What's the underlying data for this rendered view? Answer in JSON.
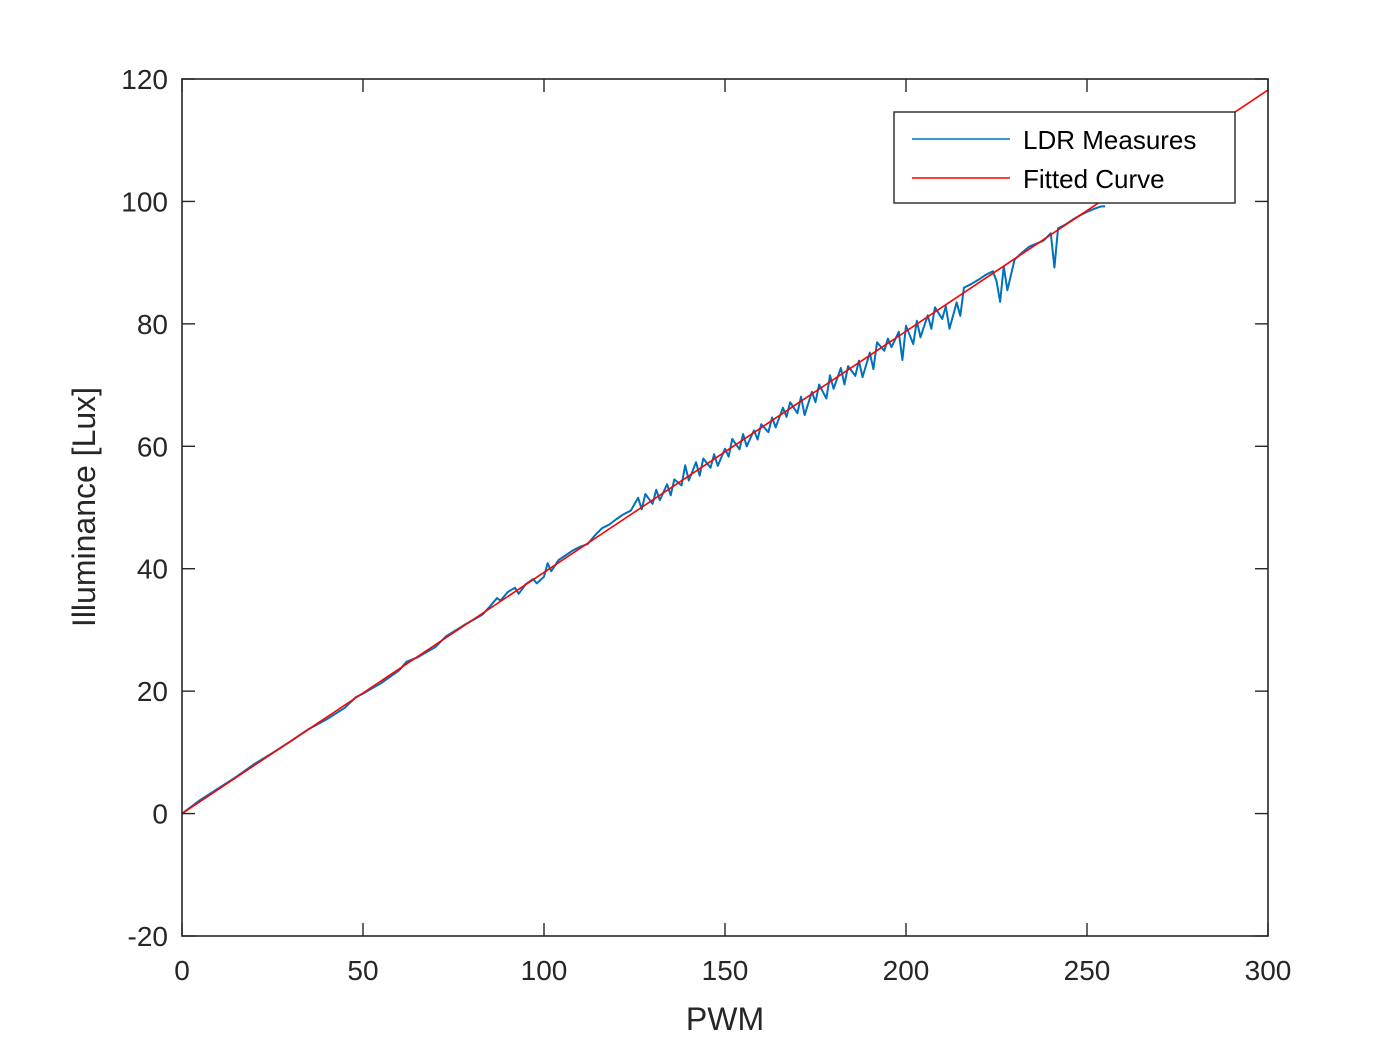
{
  "chart_data": {
    "type": "line",
    "xlabel": "PWM",
    "ylabel": "Illuminance [Lux]",
    "xlim": [
      0,
      300
    ],
    "ylim": [
      -20,
      120
    ],
    "xticks": [
      0,
      50,
      100,
      150,
      200,
      250,
      300
    ],
    "yticks": [
      -20,
      0,
      20,
      40,
      60,
      80,
      100,
      120
    ],
    "xtick_labels": [
      "0",
      "50",
      "100",
      "150",
      "200",
      "250",
      "300"
    ],
    "ytick_labels": [
      "-20",
      "0",
      "20",
      "40",
      "60",
      "80",
      "100",
      "120"
    ],
    "grid": false,
    "legend": {
      "position": "top-right"
    },
    "series": [
      {
        "name": "LDR Measures",
        "color": "#0072BD",
        "x": [
          0,
          5,
          10,
          15,
          20,
          25,
          30,
          35,
          40,
          45,
          48,
          50,
          55,
          60,
          62,
          65,
          70,
          73,
          75,
          78,
          80,
          83,
          85,
          87,
          88,
          90,
          92,
          93,
          95,
          97,
          98,
          100,
          101,
          102,
          104,
          106,
          108,
          110,
          112,
          114,
          116,
          118,
          120,
          122,
          124,
          126,
          127,
          128,
          130,
          131,
          132,
          134,
          135,
          136,
          138,
          139,
          140,
          142,
          143,
          144,
          146,
          147,
          148,
          150,
          151,
          152,
          154,
          155,
          156,
          158,
          159,
          160,
          162,
          163,
          164,
          166,
          167,
          168,
          170,
          171,
          172,
          174,
          175,
          176,
          178,
          179,
          180,
          182,
          183,
          184,
          186,
          187,
          188,
          190,
          191,
          192,
          194,
          195,
          196,
          198,
          199,
          200,
          202,
          203,
          204,
          206,
          207,
          208,
          210,
          211,
          212,
          214,
          215,
          216,
          218,
          220,
          222,
          224,
          225,
          226,
          227,
          228,
          230,
          232,
          234,
          236,
          238,
          240,
          241,
          242,
          244,
          246,
          248,
          250,
          252,
          254,
          255
        ],
        "y": [
          0,
          2.2,
          4.1,
          6.0,
          8.1,
          9.9,
          11.8,
          13.8,
          15.4,
          17.3,
          19.0,
          19.6,
          21.3,
          23.4,
          24.8,
          25.5,
          27.2,
          29.0,
          29.7,
          30.8,
          31.5,
          32.5,
          33.8,
          35.2,
          34.8,
          36.2,
          36.9,
          35.9,
          37.5,
          38.3,
          37.6,
          38.7,
          40.9,
          39.6,
          41.4,
          42.2,
          43.0,
          43.6,
          44.0,
          45.4,
          46.6,
          47.2,
          48.1,
          48.9,
          49.5,
          51.6,
          49.7,
          52.2,
          50.6,
          52.9,
          51.2,
          53.8,
          52.0,
          54.6,
          53.6,
          56.9,
          54.4,
          57.4,
          55.2,
          58.0,
          56.5,
          58.7,
          56.8,
          59.6,
          58.3,
          61.2,
          59.5,
          62.0,
          60.0,
          62.6,
          61.1,
          63.6,
          62.3,
          64.7,
          63.1,
          66.3,
          64.8,
          67.2,
          65.4,
          68.1,
          65.1,
          68.9,
          67.2,
          70.1,
          67.8,
          71.6,
          69.4,
          72.8,
          70.1,
          73.1,
          71.5,
          74.0,
          71.3,
          75.3,
          72.6,
          77.0,
          75.6,
          77.6,
          76.2,
          78.7,
          74.1,
          79.7,
          76.7,
          80.5,
          77.8,
          81.4,
          79.2,
          82.7,
          80.8,
          82.9,
          79.2,
          83.5,
          81.3,
          85.9,
          86.5,
          87.2,
          88.0,
          88.6,
          87.0,
          83.6,
          89.4,
          85.5,
          90.5,
          91.6,
          92.6,
          93.1,
          93.6,
          94.8,
          89.2,
          95.6,
          96.2,
          97.0,
          97.7,
          98.3,
          98.8,
          99.2,
          99.2
        ]
      },
      {
        "name": "Fitted Curve",
        "color": "#FF0000",
        "x": [
          0,
          300
        ],
        "y": [
          0,
          118.2
        ]
      }
    ]
  }
}
